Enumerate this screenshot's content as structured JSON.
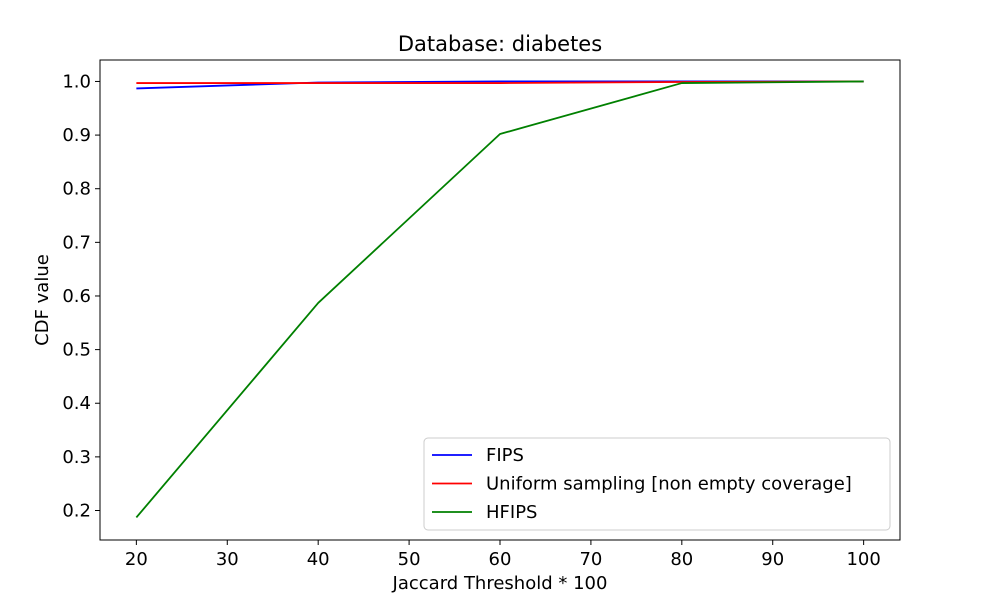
{
  "chart_data": {
    "type": "line",
    "title": "Database: diabetes",
    "xlabel": "Jaccard Threshold * 100",
    "ylabel": "CDF value",
    "xlim": [
      16,
      104
    ],
    "ylim": [
      0.145,
      1.04
    ],
    "xticks": [
      20,
      30,
      40,
      50,
      60,
      70,
      80,
      90,
      100
    ],
    "yticks": [
      0.2,
      0.3,
      0.4,
      0.5,
      0.6,
      0.7,
      0.8,
      0.9,
      1.0
    ],
    "xtick_labels": [
      "20",
      "30",
      "40",
      "50",
      "60",
      "70",
      "80",
      "90",
      "100"
    ],
    "ytick_labels": [
      "0.2",
      "0.3",
      "0.4",
      "0.5",
      "0.6",
      "0.7",
      "0.8",
      "0.9",
      "1.0"
    ],
    "grid": false,
    "legend_position": "lower-right",
    "x": [
      20,
      40,
      60,
      80,
      100
    ],
    "series": [
      {
        "name": "FIPS",
        "color": "#0000ff",
        "values": [
          0.987,
          0.998,
          1.0,
          1.0,
          1.0
        ]
      },
      {
        "name": "Uniform sampling [non empty coverage]",
        "color": "#ff0000",
        "values": [
          0.997,
          0.997,
          0.997,
          0.999,
          1.0
        ]
      },
      {
        "name": "HFIPS",
        "color": "#008000",
        "values": [
          0.187,
          0.587,
          0.902,
          0.997,
          1.0
        ]
      }
    ]
  }
}
